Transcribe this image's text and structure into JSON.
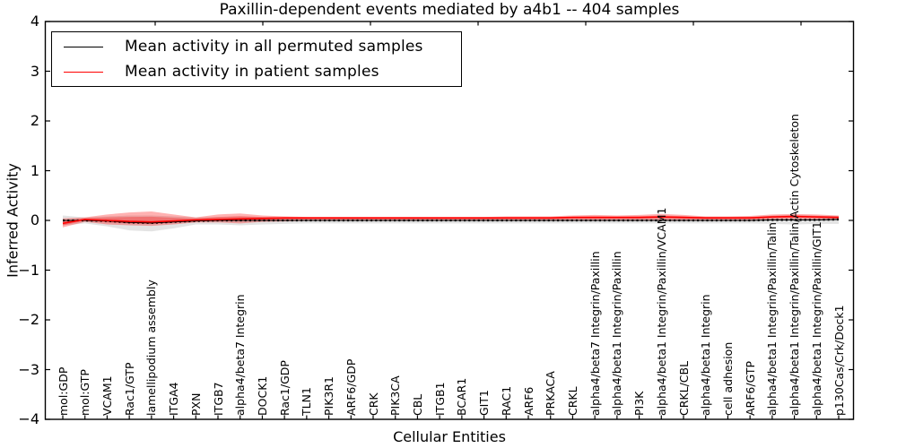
{
  "figure": {
    "title": "Paxillin-dependent events mediated by a4b1 -- 404 samples",
    "xlabel": "Cellular Entities",
    "ylabel": "Inferred Activity"
  },
  "legend": {
    "entries": [
      {
        "label": "Mean activity in all permuted samples",
        "color": "#000000"
      },
      {
        "label": "Mean activity in patient samples",
        "color": "#ff0000"
      }
    ],
    "position": "upper left"
  },
  "axes": {
    "y_ticks": [
      {
        "value": 4,
        "label": "4"
      },
      {
        "value": 3,
        "label": "3"
      },
      {
        "value": 2,
        "label": "2"
      },
      {
        "value": 1,
        "label": "1"
      },
      {
        "value": 0,
        "label": "0"
      },
      {
        "value": -1,
        "label": "−1"
      },
      {
        "value": -2,
        "label": "−2"
      },
      {
        "value": -3,
        "label": "−3"
      },
      {
        "value": -4,
        "label": "−4"
      }
    ],
    "ylim": [
      -4,
      4
    ]
  },
  "chart_data": {
    "type": "line",
    "title": "Paxillin-dependent events mediated by a4b1 -- 404 samples",
    "xlabel": "Cellular Entities",
    "ylabel": "Inferred Activity",
    "ylim": [
      -4,
      4
    ],
    "grid": false,
    "legend_position": "upper left",
    "categories": [
      "mol:GDP",
      "mol:GTP",
      "VCAM1",
      "Rac1/GTP",
      "lamellipodium assembly",
      "ITGA4",
      "PXN",
      "ITGB7",
      "alpha4/beta7 Integrin",
      "DOCK1",
      "Rac1/GDP",
      "TLN1",
      "PIK3R1",
      "ARF6/GDP",
      "CRK",
      "PIK3CA",
      "CBL",
      "ITGB1",
      "BCAR1",
      "GIT1",
      "RAC1",
      "ARF6",
      "PRKACA",
      "CRKL",
      "alpha4/beta7 Integrin/Paxillin",
      "alpha4/beta1 Integrin/Paxillin",
      "PI3K",
      "alpha4/beta1 Integrin/Paxillin/VCAM1",
      "CRKL/CBL",
      "alpha4/beta1 Integrin",
      "cell adhesion",
      "ARF6/GTP",
      "alpha4/beta1 Integrin/Paxillin/Talin",
      "alpha4/beta1 Integrin/Paxillin/Talin/Actin Cytoskeleton",
      "alpha4/beta1 Integrin/Paxillin/GIT1",
      "p130Cas/Crk/Dock1"
    ],
    "series": [
      {
        "name": "Mean activity in all permuted samples",
        "color": "#000000",
        "style": "solid-with-dot-markers",
        "values": [
          0,
          0,
          -0.01,
          -0.04,
          -0.05,
          -0.03,
          -0.01,
          0,
          0,
          0,
          0,
          0,
          0,
          0,
          0,
          0,
          0,
          0,
          0,
          0,
          0,
          0,
          0,
          0,
          0,
          0,
          0,
          0,
          0,
          0,
          0,
          0,
          0.01,
          0.01,
          0.01,
          0.02
        ]
      },
      {
        "name": "Mean activity in patient samples",
        "color": "#ff0000",
        "style": "solid",
        "values": [
          -0.06,
          0.02,
          0,
          -0.02,
          -0.03,
          -0.01,
          0.01,
          0.02,
          0.03,
          0.04,
          0.05,
          0.05,
          0.05,
          0.05,
          0.05,
          0.05,
          0.05,
          0.05,
          0.05,
          0.05,
          0.05,
          0.05,
          0.05,
          0.06,
          0.06,
          0.06,
          0.06,
          0.07,
          0.06,
          0.05,
          0.05,
          0.05,
          0.07,
          0.08,
          0.07,
          0.06
        ]
      }
    ],
    "bands": [
      {
        "name": "permuted samples spread",
        "color": "#999999",
        "opacity": 0.28,
        "upper": [
          0.1,
          0.06,
          0.08,
          0.1,
          0.1,
          0.08,
          0.06,
          0.07,
          0.08,
          0.07,
          0.06,
          0.06,
          0.06,
          0.06,
          0.06,
          0.06,
          0.06,
          0.06,
          0.06,
          0.06,
          0.06,
          0.06,
          0.06,
          0.07,
          0.07,
          0.07,
          0.07,
          0.08,
          0.08,
          0.07,
          0.07,
          0.07,
          0.09,
          0.1,
          0.09,
          0.09
        ],
        "lower": [
          -0.1,
          -0.06,
          -0.12,
          -0.2,
          -0.22,
          -0.16,
          -0.08,
          -0.08,
          -0.1,
          -0.08,
          -0.07,
          -0.06,
          -0.06,
          -0.06,
          -0.06,
          -0.06,
          -0.06,
          -0.06,
          -0.06,
          -0.06,
          -0.06,
          -0.06,
          -0.06,
          -0.06,
          -0.06,
          -0.06,
          -0.06,
          -0.06,
          -0.06,
          -0.06,
          -0.06,
          -0.06,
          -0.07,
          -0.08,
          -0.07,
          -0.07
        ]
      },
      {
        "name": "patient samples spread",
        "color": "#ff0000",
        "opacity": 0.3,
        "upper": [
          0.04,
          0.06,
          0.12,
          0.16,
          0.18,
          0.12,
          0.06,
          0.12,
          0.14,
          0.1,
          0.08,
          0.07,
          0.07,
          0.07,
          0.07,
          0.07,
          0.07,
          0.07,
          0.07,
          0.07,
          0.08,
          0.08,
          0.08,
          0.1,
          0.11,
          0.1,
          0.11,
          0.13,
          0.11,
          0.08,
          0.08,
          0.09,
          0.12,
          0.13,
          0.12,
          0.1
        ],
        "lower": [
          -0.14,
          -0.03,
          -0.08,
          -0.1,
          -0.11,
          -0.08,
          -0.04,
          -0.04,
          -0.06,
          -0.03,
          -0.02,
          -0.01,
          -0.01,
          -0.01,
          -0.01,
          -0.01,
          -0.01,
          -0.01,
          -0.01,
          -0.01,
          0,
          0,
          0,
          0.01,
          0.01,
          0.01,
          0.01,
          0.01,
          0.01,
          0.01,
          0.01,
          0.01,
          0.02,
          0.03,
          0.02,
          0.02
        ]
      }
    ]
  }
}
